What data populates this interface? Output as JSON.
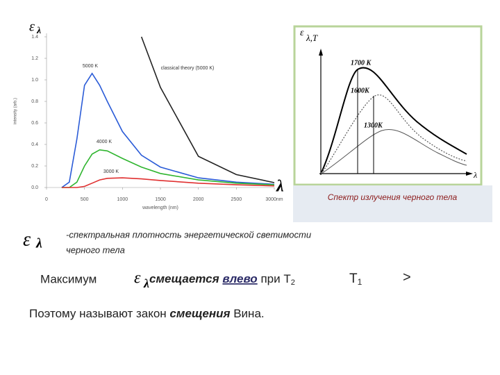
{
  "chart_data": {
    "type": "line",
    "y_label": "intensity (arb.)",
    "x_label": "wavelength (nm)",
    "y_symbol": "ε",
    "y_symbol_sub": "λ",
    "x_symbol": "λ",
    "x": [
      200,
      300,
      400,
      500,
      600,
      700,
      800,
      1000,
      1250,
      1500,
      2000,
      2500,
      3000
    ],
    "series": [
      {
        "name": "5000 K",
        "color": "#2a5bd7",
        "values": [
          0,
          0.05,
          0.45,
          0.95,
          1.06,
          0.95,
          0.8,
          0.52,
          0.3,
          0.19,
          0.09,
          0.05,
          0.03
        ]
      },
      {
        "name": "4000 K",
        "color": "#2fb52f",
        "values": [
          0,
          0,
          0.05,
          0.2,
          0.31,
          0.35,
          0.34,
          0.27,
          0.19,
          0.13,
          0.07,
          0.04,
          0.025
        ]
      },
      {
        "name": "3000 K",
        "color": "#e03030",
        "values": [
          0,
          0,
          0,
          0.01,
          0.04,
          0.07,
          0.085,
          0.09,
          0.08,
          0.065,
          0.04,
          0.025,
          0.015
        ]
      },
      {
        "name": "classical theory (5000 K)",
        "color": "#222222",
        "values": [
          null,
          null,
          null,
          null,
          null,
          null,
          null,
          null,
          1.4,
          0.93,
          0.29,
          0.12,
          0.045
        ]
      }
    ],
    "xlim": [
      0,
      3000
    ],
    "ylim": [
      0,
      1.4
    ],
    "xticks": [
      0,
      500,
      1000,
      1500,
      2000,
      2500,
      {
        "value": 3000,
        "label": "3000nm"
      }
    ],
    "yticks": [
      {
        "value": 0,
        "label": "0.0"
      },
      {
        "value": 0.2,
        "label": "0.2"
      },
      {
        "value": 0.4,
        "label": "0.4"
      },
      {
        "value": 0.6,
        "label": "0.6"
      },
      {
        "value": 0.8,
        "label": "0.8"
      },
      {
        "value": 1,
        "label": "1.0"
      },
      {
        "value": 1.2,
        "label": "1.2"
      },
      {
        "value": 1.4,
        "label": "1.4"
      }
    ],
    "grid": false
  },
  "inset": {
    "y_label": "ε",
    "y_label_sub": "λ,T",
    "x_label": "λ",
    "curves": [
      "1700 K",
      "1600K",
      "1300K"
    ],
    "caption": "Спектр излучения черного тела"
  },
  "definition": {
    "symbol": "ε",
    "symbol_sub": "λ",
    "line1": "-спектральная плотность энергетической светимости",
    "line2": "черного тела"
  },
  "shift": {
    "word": "Максимум",
    "symbol": "ε",
    "symbol_sub": "λ",
    "verb": "смещается",
    "direction": "влево",
    "at": "при T",
    "sub2": "2",
    "t1": "T",
    "sub1": "1",
    "sign": ">"
  },
  "conclusion": {
    "start": "Поэтому называют закон ",
    "emph": "смещения",
    "end": " Вина."
  }
}
